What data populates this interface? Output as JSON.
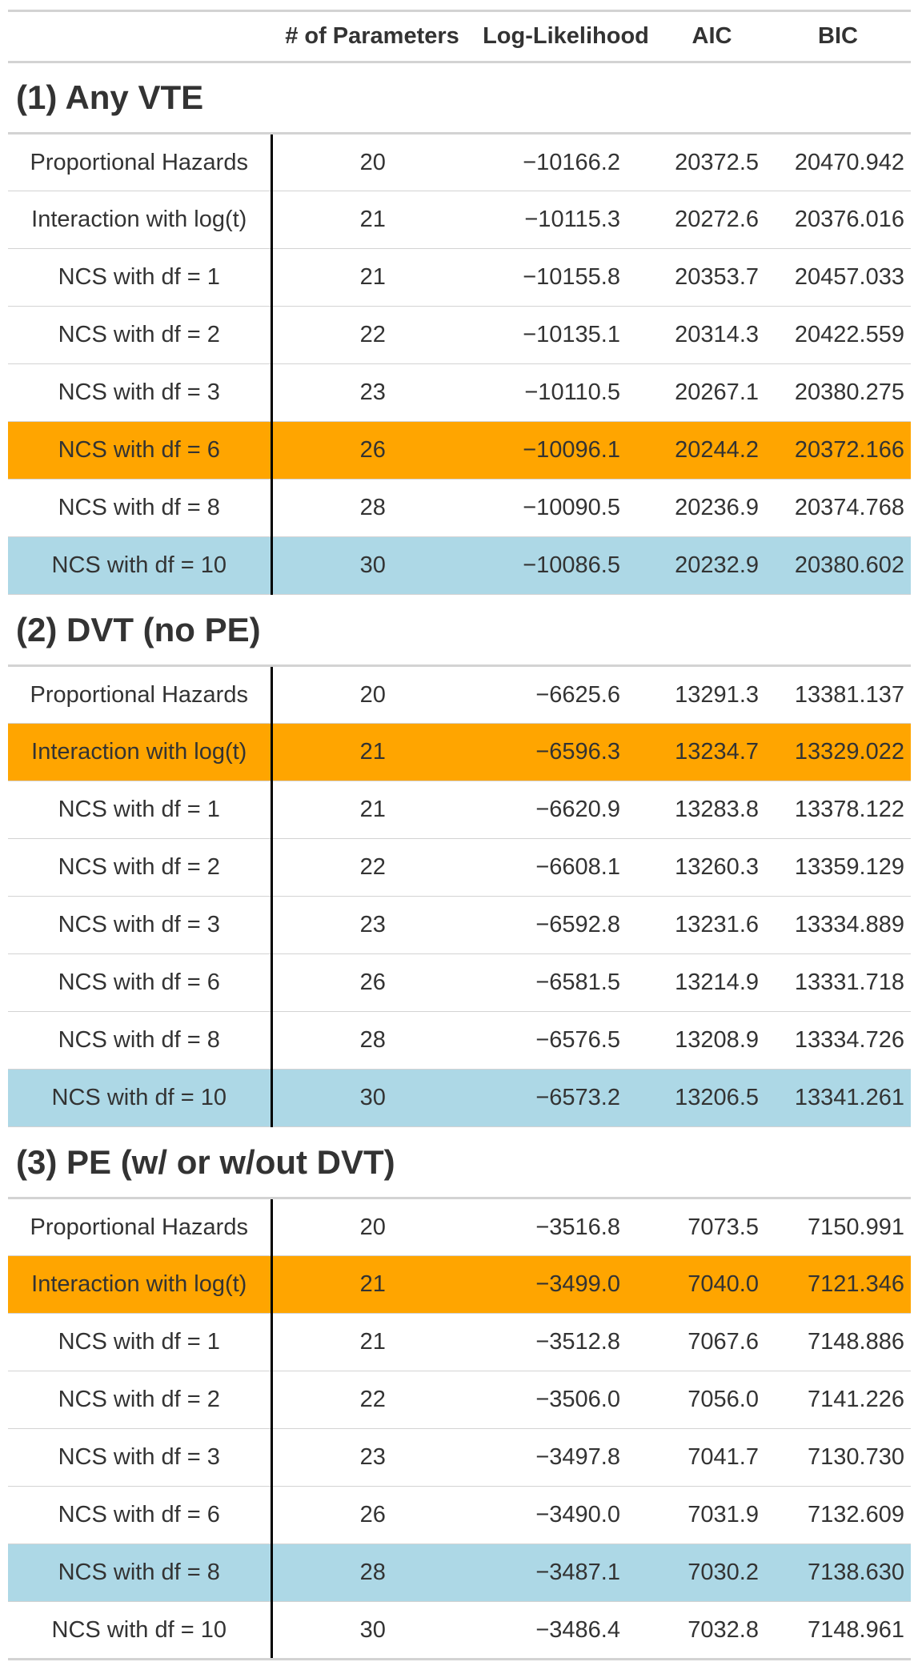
{
  "colors": {
    "highlight_orange": "#ffa500",
    "highlight_blue": "#add8e6",
    "rule": "#d3d3d3",
    "stub_rule": "#000000"
  },
  "columns": [
    "",
    "# of Parameters",
    "Log-Likelihood",
    "AIC",
    "BIC"
  ],
  "groups": [
    {
      "title": "(1) Any VTE",
      "rows": [
        {
          "model": "Proportional Hazards",
          "params": "20",
          "loglik": "−10166.2",
          "aic": "20372.5",
          "bic": "20470.942",
          "highlight": ""
        },
        {
          "model": "Interaction with log(t)",
          "params": "21",
          "loglik": "−10115.3",
          "aic": "20272.6",
          "bic": "20376.016",
          "highlight": ""
        },
        {
          "model": "NCS with df = 1",
          "params": "21",
          "loglik": "−10155.8",
          "aic": "20353.7",
          "bic": "20457.033",
          "highlight": ""
        },
        {
          "model": "NCS with df = 2",
          "params": "22",
          "loglik": "−10135.1",
          "aic": "20314.3",
          "bic": "20422.559",
          "highlight": ""
        },
        {
          "model": "NCS with df = 3",
          "params": "23",
          "loglik": "−10110.5",
          "aic": "20267.1",
          "bic": "20380.275",
          "highlight": ""
        },
        {
          "model": "NCS with df = 6",
          "params": "26",
          "loglik": "−10096.1",
          "aic": "20244.2",
          "bic": "20372.166",
          "highlight": "orange"
        },
        {
          "model": "NCS with df = 8",
          "params": "28",
          "loglik": "−10090.5",
          "aic": "20236.9",
          "bic": "20374.768",
          "highlight": ""
        },
        {
          "model": "NCS with df = 10",
          "params": "30",
          "loglik": "−10086.5",
          "aic": "20232.9",
          "bic": "20380.602",
          "highlight": "blue"
        }
      ]
    },
    {
      "title": "(2) DVT (no PE)",
      "rows": [
        {
          "model": "Proportional Hazards",
          "params": "20",
          "loglik": "−6625.6",
          "aic": "13291.3",
          "bic": "13381.137",
          "highlight": ""
        },
        {
          "model": "Interaction with log(t)",
          "params": "21",
          "loglik": "−6596.3",
          "aic": "13234.7",
          "bic": "13329.022",
          "highlight": "orange"
        },
        {
          "model": "NCS with df = 1",
          "params": "21",
          "loglik": "−6620.9",
          "aic": "13283.8",
          "bic": "13378.122",
          "highlight": ""
        },
        {
          "model": "NCS with df = 2",
          "params": "22",
          "loglik": "−6608.1",
          "aic": "13260.3",
          "bic": "13359.129",
          "highlight": ""
        },
        {
          "model": "NCS with df = 3",
          "params": "23",
          "loglik": "−6592.8",
          "aic": "13231.6",
          "bic": "13334.889",
          "highlight": ""
        },
        {
          "model": "NCS with df = 6",
          "params": "26",
          "loglik": "−6581.5",
          "aic": "13214.9",
          "bic": "13331.718",
          "highlight": ""
        },
        {
          "model": "NCS with df = 8",
          "params": "28",
          "loglik": "−6576.5",
          "aic": "13208.9",
          "bic": "13334.726",
          "highlight": ""
        },
        {
          "model": "NCS with df = 10",
          "params": "30",
          "loglik": "−6573.2",
          "aic": "13206.5",
          "bic": "13341.261",
          "highlight": "blue"
        }
      ]
    },
    {
      "title": "(3) PE (w/ or w/out DVT)",
      "rows": [
        {
          "model": "Proportional Hazards",
          "params": "20",
          "loglik": "−3516.8",
          "aic": "7073.5",
          "bic": "7150.991",
          "highlight": ""
        },
        {
          "model": "Interaction with log(t)",
          "params": "21",
          "loglik": "−3499.0",
          "aic": "7040.0",
          "bic": "7121.346",
          "highlight": "orange"
        },
        {
          "model": "NCS with df = 1",
          "params": "21",
          "loglik": "−3512.8",
          "aic": "7067.6",
          "bic": "7148.886",
          "highlight": ""
        },
        {
          "model": "NCS with df = 2",
          "params": "22",
          "loglik": "−3506.0",
          "aic": "7056.0",
          "bic": "7141.226",
          "highlight": ""
        },
        {
          "model": "NCS with df = 3",
          "params": "23",
          "loglik": "−3497.8",
          "aic": "7041.7",
          "bic": "7130.730",
          "highlight": ""
        },
        {
          "model": "NCS with df = 6",
          "params": "26",
          "loglik": "−3490.0",
          "aic": "7031.9",
          "bic": "7132.609",
          "highlight": ""
        },
        {
          "model": "NCS with df = 8",
          "params": "28",
          "loglik": "−3487.1",
          "aic": "7030.2",
          "bic": "7138.630",
          "highlight": "blue"
        },
        {
          "model": "NCS with df = 10",
          "params": "30",
          "loglik": "−3486.4",
          "aic": "7032.8",
          "bic": "7148.961",
          "highlight": ""
        }
      ]
    }
  ]
}
